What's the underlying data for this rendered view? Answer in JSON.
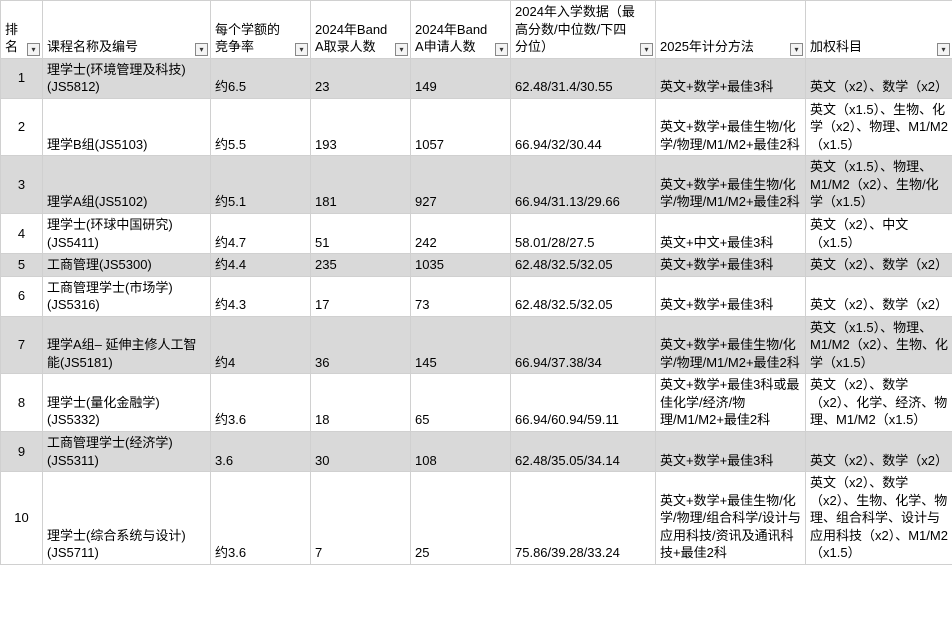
{
  "headers": {
    "rank": "排名",
    "name": "课程名称及编号",
    "competition": "每个学额的竞争率",
    "admitted": "2024年Band A取录人数",
    "applied": "2024年Band A申请人数",
    "scores": "2024年入学数据（最高分数/中位数/下四分位）",
    "calc": "2025年计分方法",
    "weighted": "加权科目"
  },
  "filterGlyph": "▾",
  "rows": [
    {
      "alt": true,
      "rank": "1",
      "name": "理学士(环境管理及科技)(JS5812)",
      "competition": "约6.5",
      "admitted": "23",
      "applied": "149",
      "scores": "62.48/31.4/30.55",
      "calc": "英文+数学+最佳3科",
      "weighted": "英文（x2）、数学（x2）"
    },
    {
      "alt": false,
      "rank": "2",
      "name": "理学B组(JS5103)",
      "competition": "约5.5",
      "admitted": "193",
      "applied": "1057",
      "scores": "66.94/32/30.44",
      "calc": "英文+数学+最佳生物/化学/物理/M1/M2+最佳2科",
      "weighted": "英文（x1.5）、生物、化学（x2）、物理、M1/M2（x1.5）"
    },
    {
      "alt": true,
      "rank": "3",
      "name": "理学A组(JS5102)",
      "competition": "约5.1",
      "admitted": "181",
      "applied": "927",
      "scores": "66.94/31.13/29.66",
      "calc": "英文+数学+最佳生物/化学/物理/M1/M2+最佳2科",
      "weighted": "英文（x1.5）、物理、M1/M2（x2）、生物/化学（x1.5）"
    },
    {
      "alt": false,
      "rank": "4",
      "name": "理学士(环球中国研究)(JS5411)",
      "competition": "约4.7",
      "admitted": "51",
      "applied": "242",
      "scores": "58.01/28/27.5",
      "calc": "英文+中文+最佳3科",
      "weighted": "英文（x2）、中文（x1.5）"
    },
    {
      "alt": true,
      "rank": "5",
      "name": "工商管理(JS5300)",
      "competition": "约4.4",
      "admitted": "235",
      "applied": "1035",
      "scores": "62.48/32.5/32.05",
      "calc": "英文+数学+最佳3科",
      "weighted": "英文（x2）、数学（x2）"
    },
    {
      "alt": false,
      "rank": "6",
      "name": "工商管理学士(市场学)(JS5316)",
      "competition": "约4.3",
      "admitted": "17",
      "applied": "73",
      "scores": "62.48/32.5/32.05",
      "calc": "英文+数学+最佳3科",
      "weighted": "英文（x2）、数学（x2）"
    },
    {
      "alt": true,
      "rank": "7",
      "name": "理学A组– 延伸主修人工智能(JS5181)",
      "competition": "约4",
      "admitted": "36",
      "applied": "145",
      "scores": "66.94/37.38/34",
      "calc": "英文+数学+最佳生物/化学/物理/M1/M2+最佳2科",
      "weighted": "英文（x1.5）、物理、M1/M2（x2）、生物、化学（x1.5）"
    },
    {
      "alt": false,
      "rank": "8",
      "name": "理学士(量化金融学)(JS5332)",
      "competition": "约3.6",
      "admitted": "18",
      "applied": "65",
      "scores": "66.94/60.94/59.11",
      "calc": "英文+数学+最佳3科或最佳化学/经济/物理/M1/M2+最佳2科",
      "weighted": "英文（x2）、数学（x2）、化学、经济、物理、M1/M2（x1.5）"
    },
    {
      "alt": true,
      "rank": "9",
      "name": "工商管理学士(经济学)(JS5311)",
      "competition": "3.6",
      "admitted": "30",
      "applied": "108",
      "scores": "62.48/35.05/34.14",
      "calc": "英文+数学+最佳3科",
      "weighted": "英文（x2）、数学（x2）"
    },
    {
      "alt": false,
      "rank": "10",
      "name": "理学士(综合系统与设计)(JS5711)",
      "competition": "约3.6",
      "admitted": "7",
      "applied": "25",
      "scores": "75.86/39.28/33.24",
      "calc": "英文+数学+最佳生物/化学/物理/组合科学/设计与应用科技/资讯及通讯科技+最佳2科",
      "weighted": "英文（x2）、数学（x2）、生物、化学、物理、组合科学、设计与应用科技（x2）、M1/M2（x1.5）"
    }
  ]
}
